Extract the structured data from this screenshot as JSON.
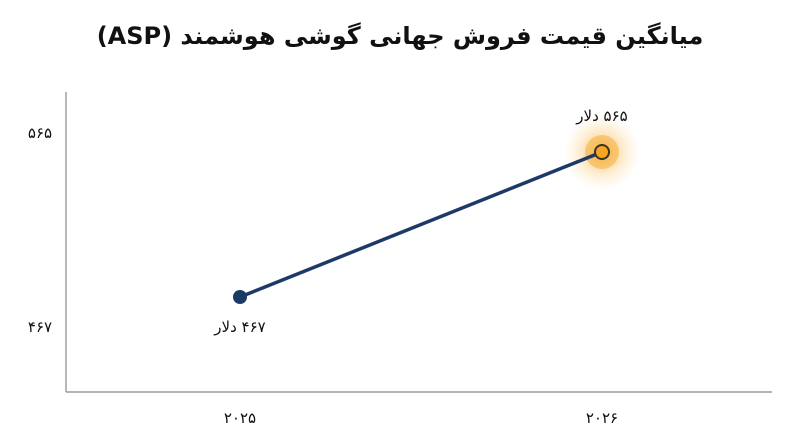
{
  "chart_data": {
    "type": "line",
    "title": "میانگین قیمت فروش جهانی گوشی هوشمند (ASP)",
    "xlabel": "",
    "ylabel": "",
    "categories": [
      "۲۰۲۵",
      "۲۰۲۶"
    ],
    "values": [
      467,
      565
    ],
    "y_ticks": [
      {
        "value": 565,
        "label": "۵۶۵"
      },
      {
        "value": 467,
        "label": "۴۶۷"
      }
    ],
    "data_labels": [
      "۴۶۷ دلار",
      "۵۶۵ دلار"
    ],
    "ylim": [
      430,
      600
    ],
    "grid": false,
    "colors": {
      "line": "#1b3a66",
      "point": "#1b3a66",
      "highlight": "#f5a623",
      "axis": "#888888"
    }
  }
}
